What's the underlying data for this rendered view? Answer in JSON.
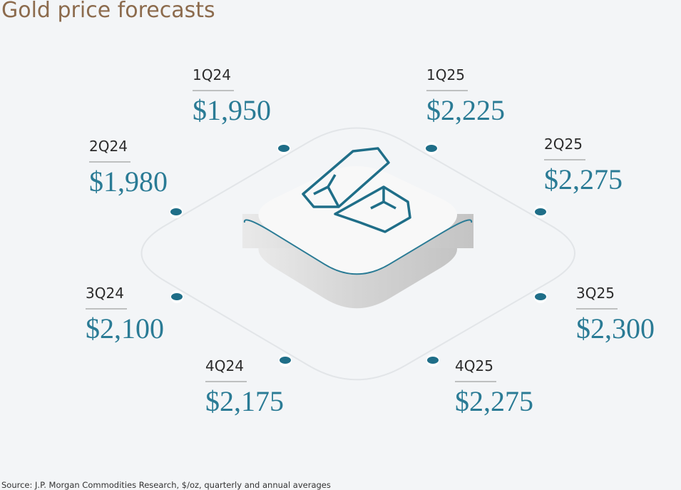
{
  "header": {
    "title": "Gold price forecasts"
  },
  "forecasts": [
    {
      "quarter": "1Q24",
      "price": "$1,950"
    },
    {
      "quarter": "2Q24",
      "price": "$1,980"
    },
    {
      "quarter": "3Q24",
      "price": "$2,100"
    },
    {
      "quarter": "4Q24",
      "price": "$2,175"
    },
    {
      "quarter": "1Q25",
      "price": "$2,225"
    },
    {
      "quarter": "2Q25",
      "price": "$2,275"
    },
    {
      "quarter": "3Q25",
      "price": "$2,300"
    },
    {
      "quarter": "4Q25",
      "price": "$2,275"
    }
  ],
  "footer": {
    "source": "Source: J.P. Morgan Commodities Research, $/oz, quarterly and annual averages"
  }
}
